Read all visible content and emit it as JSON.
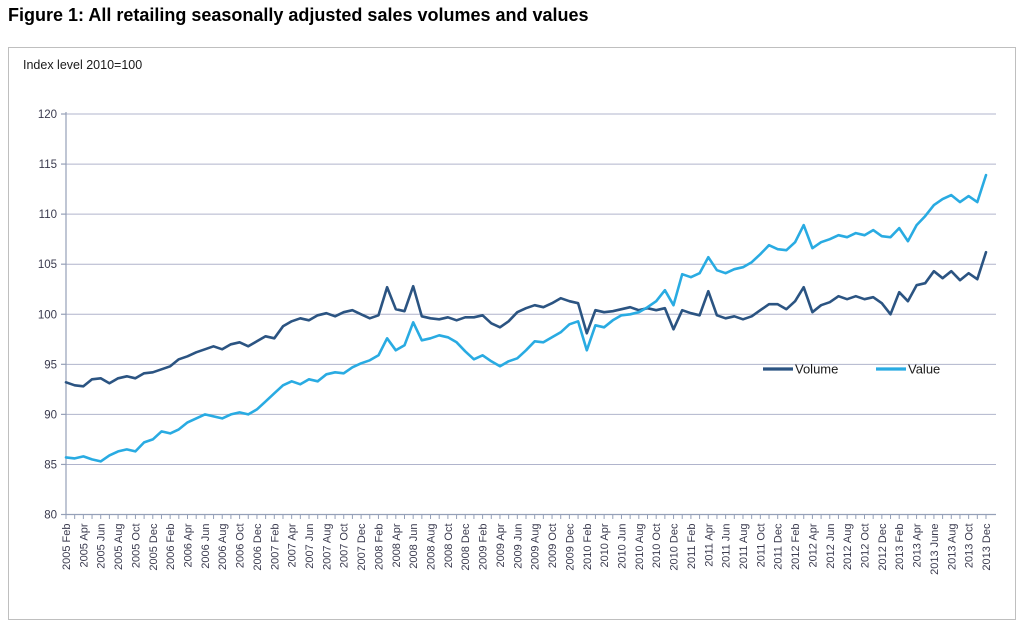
{
  "page": {
    "title": "Figure 1: All retailing seasonally adjusted sales volumes and values"
  },
  "figure": {
    "inner_label": "Index level 2010=100",
    "border_color": "#bfbfbf",
    "background": "#ffffff"
  },
  "legend": {
    "volume_label": "Volume",
    "value_label": "Value"
  },
  "chart_data": {
    "type": "line",
    "title": "Figure 1: All retailing seasonally adjusted sales volumes and values",
    "note": "Index level 2010=100",
    "xlabel": "",
    "ylabel": "Index level 2010=100",
    "ylim": [
      80,
      120
    ],
    "y_ticks": [
      80,
      85,
      90,
      95,
      100,
      105,
      110,
      115,
      120
    ],
    "grid": "horizontal",
    "legend_position": "inside-right",
    "x_tick_step": 2,
    "x_tick_labels": [
      "2005 Feb",
      "2005 Apr",
      "2005 Jun",
      "2005 Aug",
      "2005 Oct",
      "2005 Dec",
      "2006 Feb",
      "2006 Apr",
      "2006 Jun",
      "2006 Aug",
      "2006 Oct",
      "2006 Dec",
      "2007 Feb",
      "2007 Apr",
      "2007 Jun",
      "2007 Aug",
      "2007 Oct",
      "2007 Dec",
      "2008 Feb",
      "2008 Apr",
      "2008 Jun",
      "2008 Aug",
      "2008 Oct",
      "2008 Dec",
      "2009 Feb",
      "2009 Apr",
      "2009 Jun",
      "2009 Aug",
      "2009 Oct",
      "2009 Dec",
      "2010 Feb",
      "2010 Apr",
      "2010 Jun",
      "2010 Aug",
      "2010 Oct",
      "2010 Dec",
      "2011 Feb",
      "2011 Apr",
      "2011 Jun",
      "2011 Aug",
      "2011 Oct",
      "2011 Dec",
      "2012 Feb",
      "2012 Apr",
      "2012 Jun",
      "2012 Aug",
      "2012 Oct",
      "2012 Dec",
      "2013 Feb",
      "2013 Apr",
      "2013 June",
      "2013 Aug",
      "2013 Oct",
      "2013 Dec"
    ],
    "colors": {
      "volume": "#2b5482",
      "value": "#29abe2",
      "gridline": "#b0b4cc",
      "axis": "#95a0b8",
      "tick_text": "#3a3a4e",
      "legend_text": "#1a1a1a"
    },
    "series": [
      {
        "name": "Volume",
        "color": "#2b5482",
        "values": [
          93.2,
          92.9,
          92.8,
          93.5,
          93.6,
          93.1,
          93.6,
          93.8,
          93.6,
          94.1,
          94.2,
          94.5,
          94.8,
          95.5,
          95.8,
          96.2,
          96.5,
          96.8,
          96.5,
          97.0,
          97.2,
          96.8,
          97.3,
          97.8,
          97.6,
          98.8,
          99.3,
          99.6,
          99.4,
          99.9,
          100.1,
          99.8,
          100.2,
          100.4,
          100.0,
          99.6,
          99.9,
          102.7,
          100.5,
          100.3,
          102.8,
          99.8,
          99.6,
          99.5,
          99.7,
          99.4,
          99.7,
          99.7,
          99.9,
          99.1,
          98.7,
          99.3,
          100.2,
          100.6,
          100.9,
          100.7,
          101.1,
          101.6,
          101.3,
          101.1,
          98.1,
          100.4,
          100.2,
          100.3,
          100.5,
          100.7,
          100.4,
          100.6,
          100.4,
          100.6,
          98.5,
          100.4,
          100.1,
          99.9,
          102.3,
          99.9,
          99.6,
          99.8,
          99.5,
          99.8,
          100.4,
          101.0,
          101.0,
          100.5,
          101.3,
          102.7,
          100.2,
          100.9,
          101.2,
          101.8,
          101.5,
          101.8,
          101.5,
          101.7,
          101.1,
          100.0,
          102.2,
          101.3,
          102.9,
          103.1,
          104.3,
          103.6,
          104.3,
          103.4,
          104.1,
          103.5,
          106.2
        ]
      },
      {
        "name": "Value",
        "color": "#29abe2",
        "values": [
          85.7,
          85.6,
          85.8,
          85.5,
          85.3,
          85.9,
          86.3,
          86.5,
          86.3,
          87.2,
          87.5,
          88.3,
          88.1,
          88.5,
          89.2,
          89.6,
          90.0,
          89.8,
          89.6,
          90.0,
          90.2,
          90.0,
          90.5,
          91.3,
          92.1,
          92.9,
          93.3,
          93.0,
          93.5,
          93.3,
          94.0,
          94.2,
          94.1,
          94.7,
          95.1,
          95.4,
          95.9,
          97.6,
          96.4,
          96.9,
          99.2,
          97.4,
          97.6,
          97.9,
          97.7,
          97.2,
          96.3,
          95.5,
          95.9,
          95.3,
          94.8,
          95.3,
          95.6,
          96.4,
          97.3,
          97.2,
          97.7,
          98.2,
          99.0,
          99.3,
          96.4,
          98.9,
          98.7,
          99.4,
          99.9,
          100.0,
          100.2,
          100.7,
          101.3,
          102.4,
          100.9,
          104.0,
          103.7,
          104.1,
          105.7,
          104.4,
          104.1,
          104.5,
          104.7,
          105.2,
          106.0,
          106.9,
          106.5,
          106.4,
          107.2,
          108.9,
          106.6,
          107.2,
          107.5,
          107.9,
          107.7,
          108.1,
          107.9,
          108.4,
          107.8,
          107.7,
          108.6,
          107.3,
          108.9,
          109.8,
          110.9,
          111.5,
          111.9,
          111.2,
          111.8,
          111.2,
          113.9
        ]
      }
    ]
  }
}
